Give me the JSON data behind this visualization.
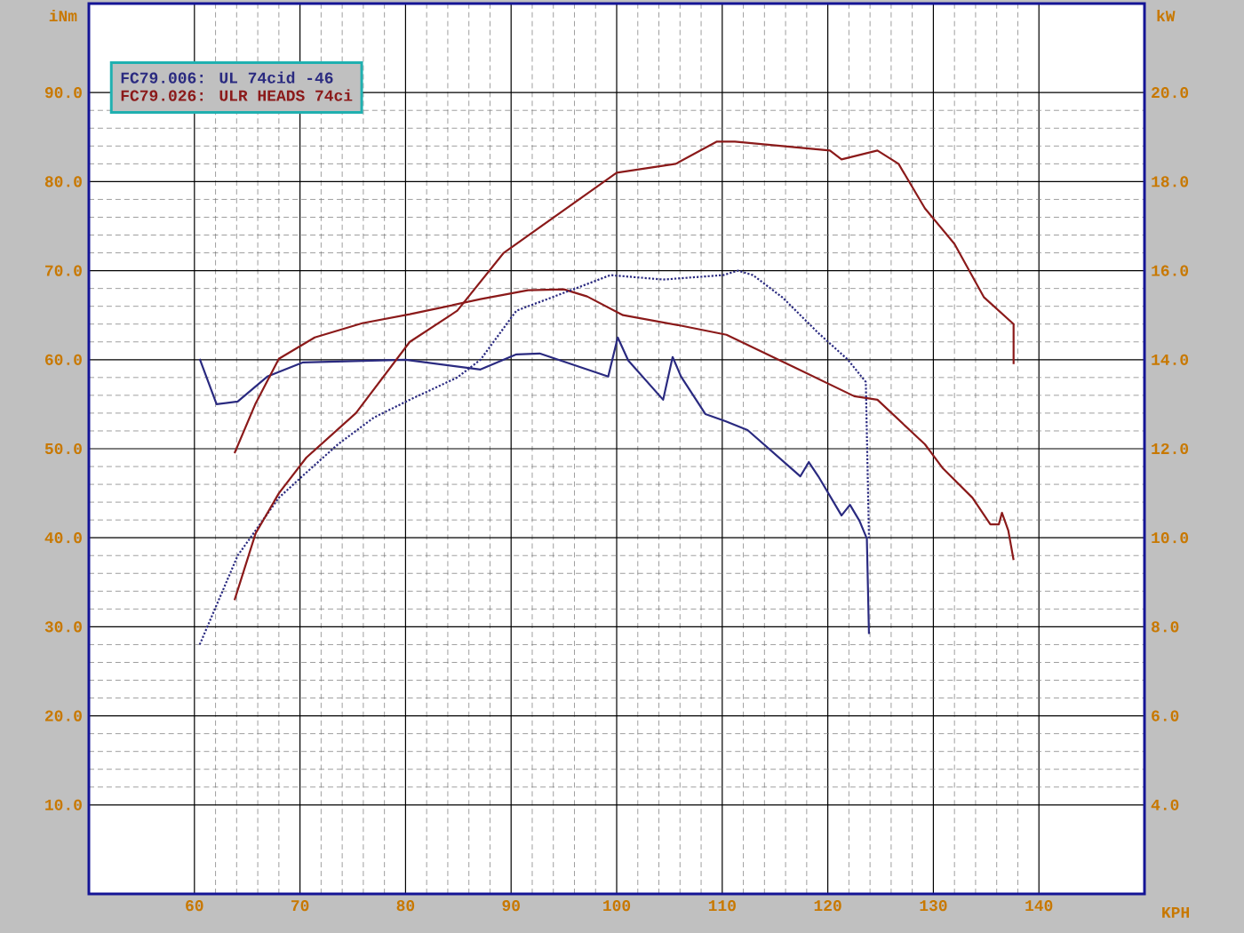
{
  "chart_data": {
    "type": "line",
    "xlabel": "KPH",
    "ylabel": "iNm",
    "y2label": "kW",
    "xlim": [
      50,
      150
    ],
    "xticks": [
      60,
      70,
      80,
      90,
      100,
      110,
      120,
      130,
      140
    ],
    "ylim": [
      0,
      100
    ],
    "yticks": [
      {
        "value": 10,
        "label": "10.0"
      },
      {
        "value": 20,
        "label": "20.0"
      },
      {
        "value": 30,
        "label": "30.0"
      },
      {
        "value": 40,
        "label": "40.0"
      },
      {
        "value": 50,
        "label": "50.0"
      },
      {
        "value": 60,
        "label": "60.0"
      },
      {
        "value": 70,
        "label": "70.0"
      },
      {
        "value": 80,
        "label": "80.0"
      },
      {
        "value": 90,
        "label": "90.0"
      }
    ],
    "y2lim": [
      2,
      22
    ],
    "y2ticks": [
      {
        "value": 4,
        "label": "4.0"
      },
      {
        "value": 6,
        "label": "6.0"
      },
      {
        "value": 8,
        "label": "8.0"
      },
      {
        "value": 10,
        "label": "10.0"
      },
      {
        "value": 12,
        "label": "12.0"
      },
      {
        "value": 14,
        "label": "14.0"
      },
      {
        "value": 16,
        "label": "16.0"
      },
      {
        "value": 18,
        "label": "18.0"
      },
      {
        "value": 20,
        "label": "20.0"
      }
    ],
    "grid": true,
    "legend": "top left",
    "marker": "none",
    "series": [
      {
        "name": "FC79.006: UL 74cid -46",
        "color": "#2a2a80",
        "line_style": "solid",
        "x": [
          60.5,
          62.1,
          64.1,
          66.9,
          70.3,
          80,
          87.1,
          90.5,
          92.7,
          99.2,
          100.1,
          101.1,
          104.4,
          105.3,
          106.1,
          108.4,
          110.3,
          112.4,
          117.4,
          118.2,
          119.1,
          121.3,
          122.1,
          123.0,
          123.7,
          123.9
        ],
        "values": [
          60.1,
          55.0,
          55.3,
          58.1,
          59.7,
          60.0,
          58.9,
          60.6,
          60.7,
          58.1,
          62.5,
          59.9,
          55.5,
          60.3,
          58.1,
          53.9,
          53.1,
          52.1,
          46.9,
          48.5,
          46.9,
          42.5,
          43.7,
          41.9,
          39.9,
          29.2
        ]
      },
      {
        "name": "FC79.026: ULR HEADS 74ci",
        "color": "#8b1a1a",
        "line_style": "solid",
        "x": [
          63.8,
          65.8,
          68.0,
          71.4,
          75.9,
          80.4,
          83.2,
          87.1,
          91.6,
          95.0,
          97.2,
          100.6,
          106.2,
          110.4,
          116.9,
          122.5,
          124.7,
          129.2,
          130.9,
          133.7,
          135.4,
          136.2,
          136.5,
          137.1,
          137.6
        ],
        "values": [
          49.5,
          55.1,
          60.1,
          62.5,
          64.1,
          65.1,
          65.8,
          66.8,
          67.8,
          67.9,
          67.1,
          65.0,
          63.8,
          62.8,
          59.1,
          55.9,
          55.5,
          50.5,
          47.8,
          44.5,
          41.5,
          41.5,
          42.8,
          40.8,
          37.5
        ]
      },
      {
        "color": "#2a2a80",
        "line_style": "dotted",
        "axis": "y2",
        "x": [
          60.5,
          64.1,
          68.0,
          70.3,
          73.6,
          77.0,
          80.4,
          84.9,
          87.1,
          90.5,
          96.1,
          99.4,
          104.4,
          110.1,
          111.5,
          112.9,
          115.7,
          119.1,
          121.9,
          123.6,
          123.9
        ],
        "values": [
          7.6,
          9.6,
          10.9,
          11.4,
          12.1,
          12.7,
          13.1,
          13.6,
          14.0,
          15.1,
          15.6,
          15.9,
          15.8,
          15.9,
          16.0,
          15.9,
          15.4,
          14.6,
          14.0,
          13.5,
          10.0
        ]
      },
      {
        "color": "#8b1a1a",
        "line_style": "solid",
        "axis": "y2",
        "x": [
          63.8,
          65.8,
          68.0,
          70.6,
          75.3,
          80.4,
          84.9,
          89.3,
          100,
          105.6,
          109.5,
          111.2,
          120.2,
          121.3,
          124.7,
          126.7,
          129.2,
          132.0,
          134.8,
          137.6,
          137.6
        ],
        "values": [
          8.6,
          10.1,
          11.0,
          11.8,
          12.8,
          14.4,
          15.1,
          16.4,
          18.2,
          18.4,
          18.9,
          18.9,
          18.7,
          18.5,
          18.7,
          18.4,
          17.4,
          16.6,
          15.4,
          14.8,
          13.9
        ]
      }
    ]
  }
}
